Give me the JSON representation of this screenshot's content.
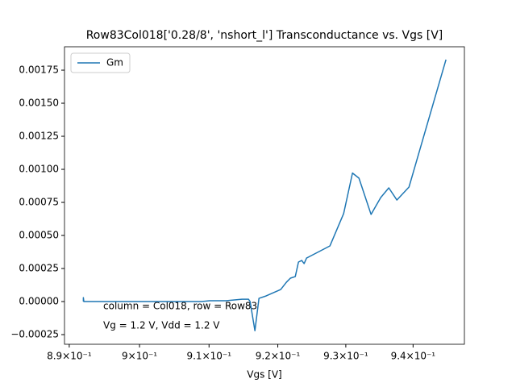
{
  "chart_data": {
    "type": "line",
    "title": "Row83Col018['0.28/8', 'nshort_l'] Transconductance vs. Vgs [V]",
    "xlabel": "Vgs [V]",
    "annotations": [
      "column = Col018, row = Row83",
      "Vg = 1.2 V, Vdd = 1.2 V"
    ],
    "xscale": "log",
    "legend": "upper left",
    "x": [
      0.892,
      0.892,
      0.89207,
      0.89276,
      0.90312,
      0.90894,
      0.9101,
      0.91244,
      0.91478,
      0.91572,
      0.91596,
      0.91666,
      0.91725,
      0.91831,
      0.92043,
      0.92126,
      0.92185,
      0.92256,
      0.92303,
      0.92351,
      0.92386,
      0.92422,
      0.92766,
      0.92968,
      0.93099,
      0.93195,
      0.93374,
      0.93518,
      0.93638,
      0.93758,
      0.93939,
      0.94493
    ],
    "series": [
      {
        "name": "Gm",
        "color": "#1f77b4",
        "values": [
          0.0,
          3e-05,
          0.0,
          0.0,
          0.0,
          0.0,
          6e-06,
          6e-06,
          1.8e-05,
          1.8e-05,
          0.0,
          -0.00022,
          2.4e-05,
          4.3e-05,
          9.1e-05,
          0.000146,
          0.000177,
          0.000189,
          0.000299,
          0.000311,
          0.000287,
          0.000329,
          0.000421,
          0.000665,
          0.000972,
          0.000933,
          0.000659,
          0.000787,
          0.00086,
          0.000768,
          0.000866,
          0.00183
        ]
      }
    ],
    "xlim": [
      0.88933,
      0.9477
    ],
    "xticks": [
      {
        "value": 0.89,
        "label": "8.9×10⁻¹"
      },
      {
        "value": 0.9,
        "label": "9×10⁻¹"
      },
      {
        "value": 0.91,
        "label": "9.1×10⁻¹"
      },
      {
        "value": 0.92,
        "label": "9.2×10⁻¹"
      },
      {
        "value": 0.93,
        "label": "9.3×10⁻¹"
      },
      {
        "value": 0.94,
        "label": "9.4×10⁻¹"
      }
    ],
    "ylim": [
      -0.000323,
      0.001927
    ],
    "yticks": [
      {
        "value": -0.00025,
        "label": "−0.00025"
      },
      {
        "value": 0,
        "label": "0.00000"
      },
      {
        "value": 0.00025,
        "label": "0.00025"
      },
      {
        "value": 0.0005,
        "label": "0.00050"
      },
      {
        "value": 0.00075,
        "label": "0.00075"
      },
      {
        "value": 0.001,
        "label": "0.00100"
      },
      {
        "value": 0.00125,
        "label": "0.00125"
      },
      {
        "value": 0.0015,
        "label": "0.00150"
      },
      {
        "value": 0.00175,
        "label": "0.00175"
      }
    ]
  }
}
